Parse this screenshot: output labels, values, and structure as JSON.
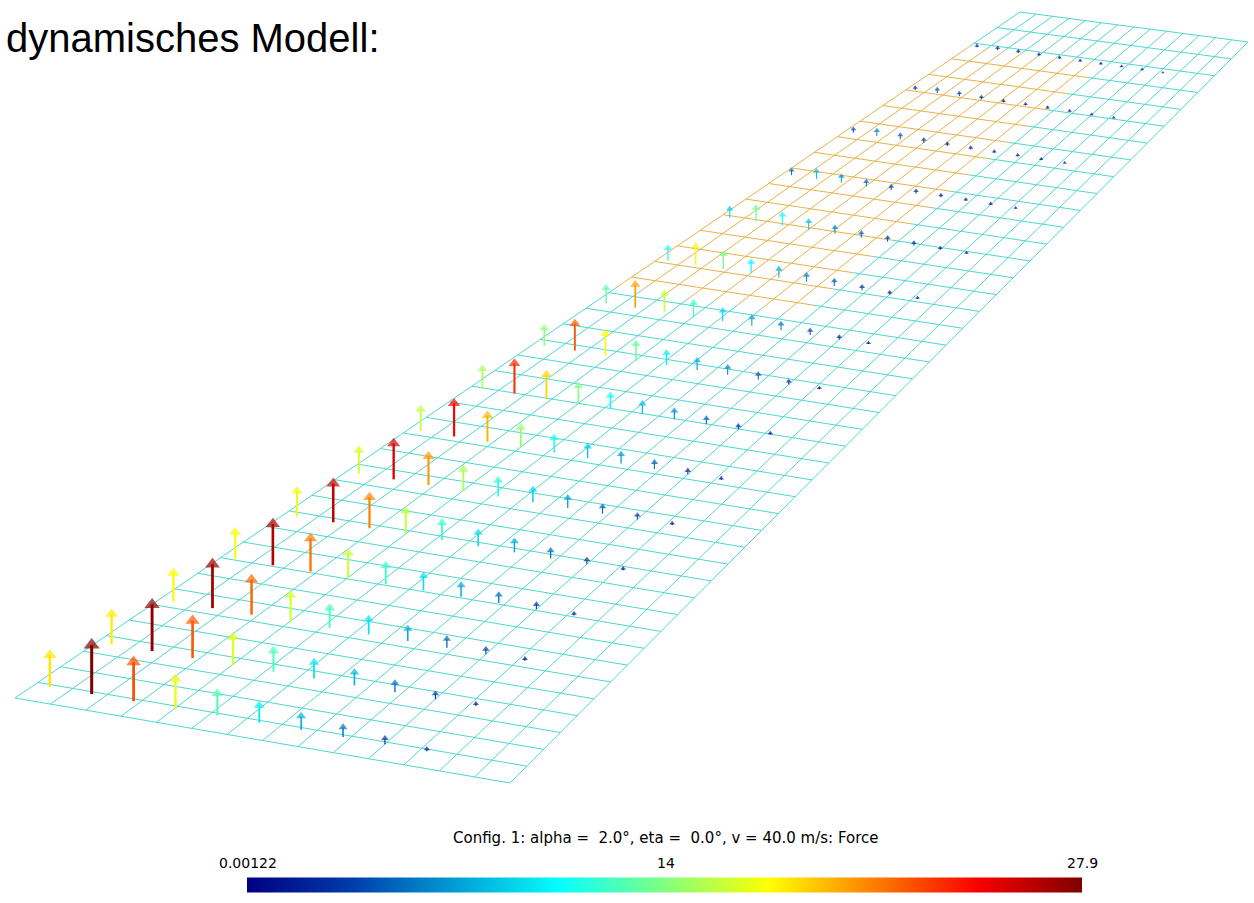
{
  "chart_data": {
    "type": "vector_field",
    "heading": "dynamisches Modell:",
    "title": "Config. 1: alpha =  2.0°, eta =  0.0°, v = 40.0 m/s: Force",
    "tick_labels": false,
    "forces": [
      [
        18.1,
        17.9,
        17.6,
        17.2,
        16.9,
        16.4,
        15.8,
        15.1,
        14.3,
        13.0,
        11.1,
        8.8,
        5.2,
        3.9,
        2.9,
        2.0
      ],
      [
        27.9,
        27.5,
        27.0,
        26.5,
        26.0,
        25.2,
        24.3,
        23.2,
        22.0,
        20.0,
        17.0,
        13.5,
        8.0,
        6.0,
        4.5,
        3.0
      ],
      [
        22.3,
        22.0,
        21.6,
        21.2,
        20.8,
        20.2,
        19.4,
        18.6,
        17.6,
        16.0,
        13.6,
        10.8,
        6.4,
        4.8,
        3.6,
        2.4
      ],
      [
        16.7,
        16.5,
        16.2,
        15.9,
        15.6,
        15.1,
        14.6,
        13.9,
        13.2,
        12.0,
        10.2,
        8.1,
        4.8,
        3.6,
        2.7,
        1.8
      ],
      [
        12.6,
        12.4,
        12.2,
        11.9,
        11.7,
        11.3,
        10.9,
        10.4,
        9.9,
        9.0,
        7.7,
        6.1,
        3.6,
        2.7,
        2.0,
        1.4
      ],
      [
        9.8,
        9.6,
        9.5,
        9.3,
        9.1,
        8.8,
        8.5,
        8.1,
        7.7,
        7.0,
        6.0,
        4.7,
        2.8,
        2.1,
        1.6,
        1.1
      ],
      [
        7.8,
        7.7,
        7.6,
        7.4,
        7.3,
        7.1,
        6.8,
        6.5,
        6.2,
        5.6,
        4.8,
        3.8,
        2.2,
        1.7,
        1.3,
        0.8
      ],
      [
        5.6,
        5.5,
        5.4,
        5.3,
        5.2,
        5.0,
        4.9,
        4.6,
        4.4,
        4.0,
        3.4,
        2.7,
        1.6,
        1.2,
        0.9,
        0.6
      ],
      [
        3.3,
        3.3,
        3.2,
        3.2,
        3.1,
        3.0,
        2.9,
        2.8,
        2.6,
        2.4,
        2.0,
        1.6,
        1.0,
        0.7,
        0.5,
        0.4
      ],
      [
        1.4,
        1.4,
        1.4,
        1.3,
        1.3,
        1.3,
        1.2,
        1.2,
        1.1,
        1.0,
        0.9,
        0.7,
        0.4,
        0.3,
        0.2,
        0.00122
      ]
    ],
    "colorbar": {
      "range": [
        0.00122,
        27.9
      ],
      "ticks": [
        0.00122,
        14,
        27.9
      ]
    }
  }
}
